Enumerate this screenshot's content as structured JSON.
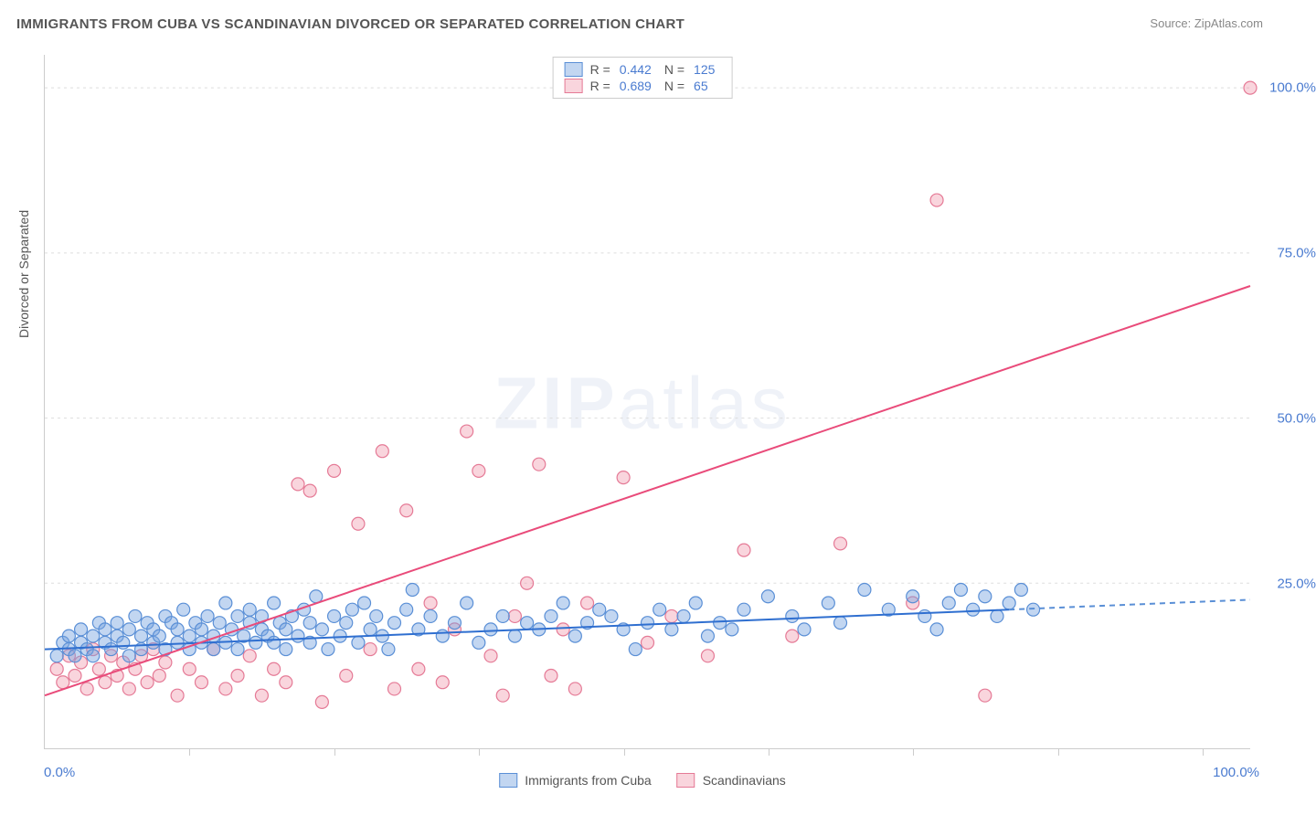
{
  "title": "IMMIGRANTS FROM CUBA VS SCANDINAVIAN DIVORCED OR SEPARATED CORRELATION CHART",
  "source_label": "Source:",
  "source_name": "ZipAtlas.com",
  "ylabel": "Divorced or Separated",
  "watermark_bold": "ZIP",
  "watermark_light": "atlas",
  "chart": {
    "type": "scatter",
    "background_color": "#ffffff",
    "grid_color": "#dddddd",
    "axis_color": "#cccccc",
    "tick_label_color": "#4a7bd0",
    "label_fontsize": 14,
    "tick_fontsize": 15,
    "xlim": [
      0,
      100
    ],
    "ylim": [
      0,
      105
    ],
    "yticks": [
      25,
      50,
      75,
      100
    ],
    "ytick_labels": [
      "25.0%",
      "50.0%",
      "75.0%",
      "100.0%"
    ],
    "xticks": [
      12,
      24,
      36,
      48,
      60,
      72,
      84,
      96
    ],
    "xmin_label": "0.0%",
    "xmax_label": "100.0%",
    "marker_radius": 7,
    "marker_stroke_width": 1.2,
    "trend_line_width": 2
  },
  "series": [
    {
      "name": "Immigrants from Cuba",
      "fill_color": "rgba(120,165,225,0.45)",
      "stroke_color": "#5a8fd6",
      "trend_color": "#2f6fd0",
      "trend_dash_color": "#5a8fd6",
      "R": "0.442",
      "N": "125",
      "trend": {
        "x1": 0,
        "y1": 15,
        "x2": 80,
        "y2": 21,
        "ext_x2": 100,
        "ext_y2": 22.5
      },
      "points": [
        [
          1,
          14
        ],
        [
          1.5,
          16
        ],
        [
          2,
          15
        ],
        [
          2,
          17
        ],
        [
          2.5,
          14
        ],
        [
          3,
          16
        ],
        [
          3,
          18
        ],
        [
          3.5,
          15
        ],
        [
          4,
          14
        ],
        [
          4,
          17
        ],
        [
          4.5,
          19
        ],
        [
          5,
          16
        ],
        [
          5,
          18
        ],
        [
          5.5,
          15
        ],
        [
          6,
          17
        ],
        [
          6,
          19
        ],
        [
          6.5,
          16
        ],
        [
          7,
          14
        ],
        [
          7,
          18
        ],
        [
          7.5,
          20
        ],
        [
          8,
          17
        ],
        [
          8,
          15
        ],
        [
          8.5,
          19
        ],
        [
          9,
          16
        ],
        [
          9,
          18
        ],
        [
          9.5,
          17
        ],
        [
          10,
          20
        ],
        [
          10,
          15
        ],
        [
          10.5,
          19
        ],
        [
          11,
          16
        ],
        [
          11,
          18
        ],
        [
          11.5,
          21
        ],
        [
          12,
          17
        ],
        [
          12,
          15
        ],
        [
          12.5,
          19
        ],
        [
          13,
          16
        ],
        [
          13,
          18
        ],
        [
          13.5,
          20
        ],
        [
          14,
          17
        ],
        [
          14,
          15
        ],
        [
          14.5,
          19
        ],
        [
          15,
          22
        ],
        [
          15,
          16
        ],
        [
          15.5,
          18
        ],
        [
          16,
          20
        ],
        [
          16,
          15
        ],
        [
          16.5,
          17
        ],
        [
          17,
          19
        ],
        [
          17,
          21
        ],
        [
          17.5,
          16
        ],
        [
          18,
          18
        ],
        [
          18,
          20
        ],
        [
          18.5,
          17
        ],
        [
          19,
          22
        ],
        [
          19,
          16
        ],
        [
          19.5,
          19
        ],
        [
          20,
          15
        ],
        [
          20,
          18
        ],
        [
          20.5,
          20
        ],
        [
          21,
          17
        ],
        [
          21.5,
          21
        ],
        [
          22,
          16
        ],
        [
          22,
          19
        ],
        [
          22.5,
          23
        ],
        [
          23,
          18
        ],
        [
          23.5,
          15
        ],
        [
          24,
          20
        ],
        [
          24.5,
          17
        ],
        [
          25,
          19
        ],
        [
          25.5,
          21
        ],
        [
          26,
          16
        ],
        [
          26.5,
          22
        ],
        [
          27,
          18
        ],
        [
          27.5,
          20
        ],
        [
          28,
          17
        ],
        [
          28.5,
          15
        ],
        [
          29,
          19
        ],
        [
          30,
          21
        ],
        [
          30.5,
          24
        ],
        [
          31,
          18
        ],
        [
          32,
          20
        ],
        [
          33,
          17
        ],
        [
          34,
          19
        ],
        [
          35,
          22
        ],
        [
          36,
          16
        ],
        [
          37,
          18
        ],
        [
          38,
          20
        ],
        [
          39,
          17
        ],
        [
          40,
          19
        ],
        [
          41,
          18
        ],
        [
          42,
          20
        ],
        [
          43,
          22
        ],
        [
          44,
          17
        ],
        [
          45,
          19
        ],
        [
          46,
          21
        ],
        [
          47,
          20
        ],
        [
          48,
          18
        ],
        [
          49,
          15
        ],
        [
          50,
          19
        ],
        [
          51,
          21
        ],
        [
          52,
          18
        ],
        [
          53,
          20
        ],
        [
          54,
          22
        ],
        [
          55,
          17
        ],
        [
          56,
          19
        ],
        [
          57,
          18
        ],
        [
          58,
          21
        ],
        [
          60,
          23
        ],
        [
          62,
          20
        ],
        [
          63,
          18
        ],
        [
          65,
          22
        ],
        [
          66,
          19
        ],
        [
          68,
          24
        ],
        [
          70,
          21
        ],
        [
          72,
          23
        ],
        [
          73,
          20
        ],
        [
          74,
          18
        ],
        [
          75,
          22
        ],
        [
          76,
          24
        ],
        [
          77,
          21
        ],
        [
          78,
          23
        ],
        [
          79,
          20
        ],
        [
          80,
          22
        ],
        [
          81,
          24
        ],
        [
          82,
          21
        ]
      ]
    },
    {
      "name": "Scandinavians",
      "fill_color": "rgba(240,150,170,0.40)",
      "stroke_color": "#e57a96",
      "trend_color": "#e94b7a",
      "R": "0.689",
      "N": "65",
      "trend": {
        "x1": 0,
        "y1": 8,
        "x2": 100,
        "y2": 70
      },
      "points": [
        [
          1,
          12
        ],
        [
          1.5,
          10
        ],
        [
          2,
          14
        ],
        [
          2.5,
          11
        ],
        [
          3,
          13
        ],
        [
          3.5,
          9
        ],
        [
          4,
          15
        ],
        [
          4.5,
          12
        ],
        [
          5,
          10
        ],
        [
          5.5,
          14
        ],
        [
          6,
          11
        ],
        [
          6.5,
          13
        ],
        [
          7,
          9
        ],
        [
          7.5,
          12
        ],
        [
          8,
          14
        ],
        [
          8.5,
          10
        ],
        [
          9,
          15
        ],
        [
          9.5,
          11
        ],
        [
          10,
          13
        ],
        [
          11,
          8
        ],
        [
          12,
          12
        ],
        [
          13,
          10
        ],
        [
          14,
          15
        ],
        [
          15,
          9
        ],
        [
          16,
          11
        ],
        [
          17,
          14
        ],
        [
          18,
          8
        ],
        [
          19,
          12
        ],
        [
          20,
          10
        ],
        [
          21,
          40
        ],
        [
          22,
          39
        ],
        [
          23,
          7
        ],
        [
          24,
          42
        ],
        [
          25,
          11
        ],
        [
          26,
          34
        ],
        [
          27,
          15
        ],
        [
          28,
          45
        ],
        [
          29,
          9
        ],
        [
          30,
          36
        ],
        [
          31,
          12
        ],
        [
          32,
          22
        ],
        [
          33,
          10
        ],
        [
          34,
          18
        ],
        [
          35,
          48
        ],
        [
          36,
          42
        ],
        [
          37,
          14
        ],
        [
          38,
          8
        ],
        [
          39,
          20
        ],
        [
          40,
          25
        ],
        [
          41,
          43
        ],
        [
          42,
          11
        ],
        [
          43,
          18
        ],
        [
          44,
          9
        ],
        [
          45,
          22
        ],
        [
          48,
          41
        ],
        [
          50,
          16
        ],
        [
          52,
          20
        ],
        [
          55,
          14
        ],
        [
          58,
          30
        ],
        [
          62,
          17
        ],
        [
          66,
          31
        ],
        [
          72,
          22
        ],
        [
          74,
          83
        ],
        [
          78,
          8
        ],
        [
          100,
          100
        ]
      ]
    }
  ],
  "top_legend": {
    "r_prefix": "R =",
    "n_prefix": "N ="
  },
  "bottom_legend": {
    "items": [
      "Immigrants from Cuba",
      "Scandinavians"
    ]
  }
}
